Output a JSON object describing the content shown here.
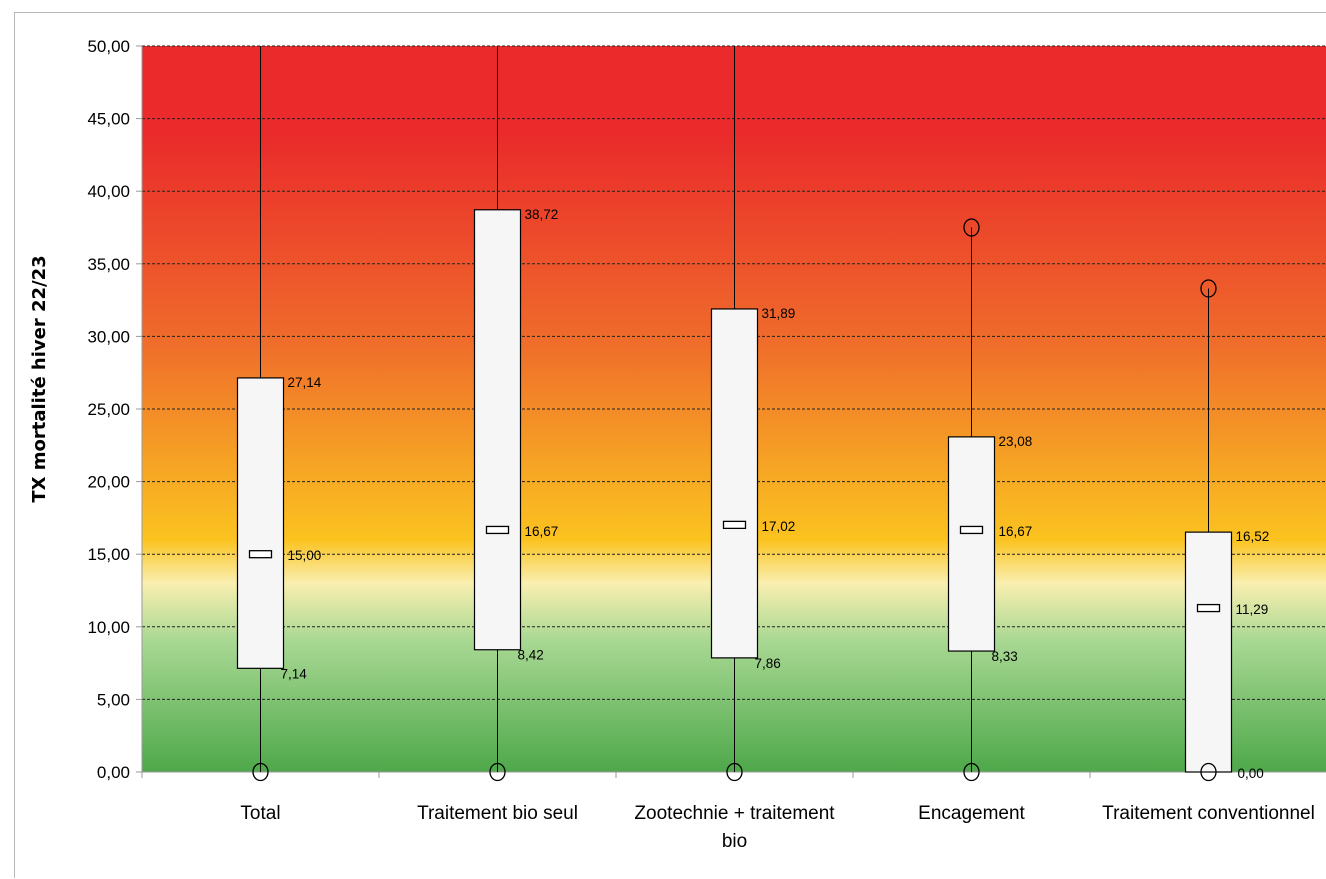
{
  "chart_data": {
    "type": "boxplot",
    "ylabel": "TX mortalité hiver 22/23",
    "ylim": [
      0,
      50
    ],
    "y_ticks": [
      "0,00",
      "5,00",
      "10,00",
      "15,00",
      "20,00",
      "25,00",
      "30,00",
      "35,00",
      "40,00",
      "45,00",
      "50,00"
    ],
    "grid": true,
    "background": "vertical gradient: green (0) to yellow (~15) to red (50)",
    "categories": [
      {
        "label_lines": [
          "Total"
        ],
        "q1": 7.14,
        "median": 15.0,
        "q3": 27.14,
        "whisker_low": 0,
        "whisker_high": 50,
        "q1_label": "7,14",
        "median_label": "15,00",
        "q3_label": "27,14",
        "outliers": [
          0
        ]
      },
      {
        "label_lines": [
          "Traitement bio seul"
        ],
        "q1": 8.42,
        "median": 16.67,
        "q3": 38.72,
        "whisker_low": 0,
        "whisker_high": 50,
        "q1_label": "8,42",
        "median_label": "16,67",
        "q3_label": "38,72",
        "outliers": [
          0
        ]
      },
      {
        "label_lines": [
          "Zootechnie + traitement",
          "bio"
        ],
        "q1": 7.86,
        "median": 17.02,
        "q3": 31.89,
        "whisker_low": 0,
        "whisker_high": 50,
        "q1_label": "7,86",
        "median_label": "17,02",
        "q3_label": "31,89",
        "outliers": [
          0
        ]
      },
      {
        "label_lines": [
          "Encagement"
        ],
        "q1": 8.33,
        "median": 16.67,
        "q3": 23.08,
        "whisker_low": 0,
        "whisker_high": 37.5,
        "q1_label": "8,33",
        "median_label": "16,67",
        "q3_label": "23,08",
        "outliers": [
          0,
          37.5
        ]
      },
      {
        "label_lines": [
          "Traitement conventionnel"
        ],
        "q1": 0.0,
        "median": 11.29,
        "q3": 16.52,
        "whisker_low": 0,
        "whisker_high": 33.3,
        "q1_label": "0,00",
        "median_label": "11,29",
        "q3_label": "16,52",
        "outliers": [
          0,
          33.3
        ]
      }
    ]
  },
  "colors": {
    "top": "#ea2a2b",
    "upper_mid": "#ef6a2b",
    "orange": "#f6a524",
    "yellow": "#fbc320",
    "pale": "#f9efb0",
    "light_green": "#a8d893",
    "green": "#4ea84a",
    "box_fill": "#f6f6f6",
    "line": "#000000",
    "grid": "#222222",
    "axis": "#9a9a9a"
  }
}
